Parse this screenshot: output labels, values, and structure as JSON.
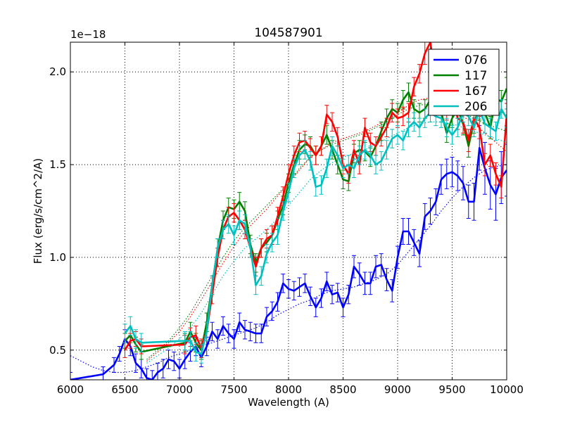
{
  "chart_data": {
    "type": "line",
    "title": "104587901",
    "xlabel": "Wavelength (A)",
    "ylabel": "Flux (erg/s/cm^2/A)",
    "y_offset_label": "1e−18",
    "xlim": [
      6000,
      10000
    ],
    "ylim": [
      0.34,
      2.16
    ],
    "x_ticks": [
      6000,
      6500,
      7000,
      7500,
      8000,
      8500,
      9000,
      9500,
      10000
    ],
    "y_ticks": [
      0.5,
      1.0,
      1.5,
      2.0
    ],
    "x_tick_labels": [
      "6000",
      "6500",
      "7000",
      "7500",
      "8000",
      "8500",
      "9000",
      "9500",
      "10000"
    ],
    "y_tick_labels": [
      "0.5",
      "1.0",
      "1.5",
      "2.0"
    ],
    "grid": true,
    "grid_style": "dotted",
    "legend_position": "top-right",
    "series": [
      {
        "name": "076",
        "color": "#0000ff",
        "x": [
          6000,
          6300,
          6400,
          6450,
          6500,
          6550,
          6600,
          6650,
          6700,
          6750,
          6800,
          6850,
          6900,
          6950,
          7000,
          7050,
          7100,
          7150,
          7200,
          7250,
          7300,
          7350,
          7400,
          7450,
          7500,
          7550,
          7600,
          7650,
          7700,
          7750,
          7800,
          7850,
          7900,
          7950,
          8000,
          8050,
          8100,
          8150,
          8200,
          8250,
          8300,
          8350,
          8400,
          8450,
          8500,
          8550,
          8600,
          8650,
          8700,
          8750,
          8800,
          8850,
          8900,
          8950,
          9000,
          9050,
          9100,
          9150,
          9200,
          9250,
          9300,
          9350,
          9400,
          9450,
          9500,
          9550,
          9600,
          9650,
          9700,
          9750,
          9800,
          9850,
          9900,
          9950,
          10000
        ],
        "y": [
          0.34,
          0.37,
          0.42,
          0.48,
          0.56,
          0.52,
          0.43,
          0.4,
          0.35,
          0.34,
          0.38,
          0.4,
          0.45,
          0.44,
          0.4,
          0.45,
          0.49,
          0.52,
          0.46,
          0.52,
          0.6,
          0.56,
          0.63,
          0.59,
          0.56,
          0.65,
          0.61,
          0.6,
          0.59,
          0.59,
          0.68,
          0.71,
          0.76,
          0.86,
          0.83,
          0.82,
          0.84,
          0.86,
          0.79,
          0.73,
          0.78,
          0.87,
          0.8,
          0.81,
          0.73,
          0.8,
          0.95,
          0.91,
          0.86,
          0.86,
          0.95,
          0.96,
          0.88,
          0.82,
          1.0,
          1.14,
          1.14,
          1.08,
          1.02,
          1.22,
          1.25,
          1.3,
          1.42,
          1.45,
          1.46,
          1.44,
          1.4,
          1.3,
          1.3,
          1.59,
          1.48,
          1.39,
          1.34,
          1.43,
          1.47
        ],
        "err": [
          0.04,
          0.04,
          0.04,
          0.04,
          0.05,
          0.05,
          0.05,
          0.05,
          0.05,
          0.05,
          0.05,
          0.05,
          0.05,
          0.05,
          0.05,
          0.05,
          0.05,
          0.05,
          0.05,
          0.05,
          0.05,
          0.05,
          0.05,
          0.05,
          0.05,
          0.05,
          0.05,
          0.05,
          0.05,
          0.05,
          0.05,
          0.05,
          0.05,
          0.05,
          0.05,
          0.05,
          0.05,
          0.05,
          0.05,
          0.05,
          0.05,
          0.05,
          0.05,
          0.05,
          0.05,
          0.05,
          0.06,
          0.06,
          0.06,
          0.06,
          0.06,
          0.06,
          0.06,
          0.06,
          0.06,
          0.07,
          0.07,
          0.07,
          0.07,
          0.07,
          0.07,
          0.07,
          0.08,
          0.08,
          0.08,
          0.08,
          0.09,
          0.09,
          0.1,
          0.12,
          0.14,
          0.13,
          0.14,
          0.14,
          0.14
        ],
        "fit_x": [
          6000,
          6100,
          6200,
          6300,
          6400,
          6500,
          6600,
          6700,
          6800,
          6900,
          7000,
          7100,
          7200,
          7300,
          7400,
          7500,
          7600,
          7700,
          7800,
          7900,
          8000,
          8100,
          8200,
          8300,
          8400,
          8500,
          8600,
          8700,
          8800,
          8900,
          9000,
          9100,
          9200,
          9300,
          9400,
          9500,
          9600,
          9700,
          9800,
          9900,
          10000
        ],
        "fit_y": [
          0.47,
          0.44,
          0.41,
          0.39,
          0.38,
          0.38,
          0.39,
          0.41,
          0.43,
          0.46,
          0.48,
          0.5,
          0.52,
          0.54,
          0.56,
          0.58,
          0.6,
          0.62,
          0.65,
          0.69,
          0.72,
          0.75,
          0.77,
          0.8,
          0.82,
          0.83,
          0.84,
          0.86,
          0.88,
          0.91,
          0.96,
          1.03,
          1.1,
          1.17,
          1.25,
          1.32,
          1.38,
          1.43,
          1.47,
          1.49,
          1.5
        ]
      },
      {
        "name": "117",
        "color": "#008000",
        "x": [
          6500,
          6550,
          6600,
          6650,
          7050,
          7100,
          7150,
          7200,
          7250,
          7300,
          7350,
          7400,
          7450,
          7500,
          7550,
          7600,
          7650,
          7700,
          7750,
          7800,
          7850,
          7900,
          7950,
          8000,
          8050,
          8100,
          8150,
          8200,
          8250,
          8300,
          8350,
          8400,
          8450,
          8500,
          8550,
          8600,
          8650,
          8700,
          8750,
          8800,
          8850,
          8900,
          8950,
          9000,
          9050,
          9100,
          9150,
          9200,
          9250,
          9300,
          9350,
          9400,
          9450,
          9500,
          9550,
          9600,
          9650,
          9700,
          9750,
          9800,
          9850,
          9900,
          9950,
          10000
        ],
        "y": [
          0.55,
          0.58,
          0.53,
          0.49,
          0.54,
          0.6,
          0.54,
          0.5,
          0.65,
          0.85,
          1.05,
          1.2,
          1.27,
          1.26,
          1.3,
          1.25,
          1.07,
          0.97,
          1.05,
          1.08,
          1.12,
          1.2,
          1.28,
          1.4,
          1.5,
          1.58,
          1.61,
          1.6,
          1.55,
          1.6,
          1.66,
          1.58,
          1.5,
          1.42,
          1.41,
          1.56,
          1.58,
          1.57,
          1.54,
          1.6,
          1.68,
          1.75,
          1.8,
          1.78,
          1.85,
          1.89,
          1.8,
          1.78,
          1.8,
          1.85,
          1.84,
          1.78,
          1.67,
          1.75,
          1.8,
          1.72,
          1.6,
          1.73,
          1.8,
          1.78,
          1.7,
          1.86,
          1.84,
          1.91
        ],
        "err": [
          0.04,
          0.04,
          0.04,
          0.04,
          0.05,
          0.05,
          0.05,
          0.05,
          0.05,
          0.05,
          0.05,
          0.05,
          0.05,
          0.05,
          0.05,
          0.05,
          0.05,
          0.05,
          0.05,
          0.05,
          0.05,
          0.05,
          0.05,
          0.05,
          0.05,
          0.05,
          0.05,
          0.05,
          0.05,
          0.05,
          0.05,
          0.05,
          0.05,
          0.05,
          0.05,
          0.05,
          0.05,
          0.05,
          0.05,
          0.05,
          0.05,
          0.05,
          0.05,
          0.05,
          0.05,
          0.05,
          0.05,
          0.05,
          0.05,
          0.05,
          0.05,
          0.05,
          0.05,
          0.05,
          0.05,
          0.06,
          0.06,
          0.06,
          0.06,
          0.06,
          0.06,
          0.06,
          0.06,
          0.06
        ],
        "fit_x": [
          6700,
          6800,
          6900,
          7000,
          7100,
          7200,
          7300,
          7400,
          7500,
          7600,
          7700,
          7800,
          7900,
          8000,
          8100,
          8200,
          8300,
          8400,
          8500,
          8600,
          8700,
          8800,
          8900,
          9000,
          9100,
          9200,
          9300,
          9400,
          9500,
          9600,
          9700,
          9800,
          9900,
          10000
        ],
        "fit_y": [
          0.45,
          0.5,
          0.55,
          0.62,
          0.7,
          0.8,
          0.9,
          1.0,
          1.09,
          1.16,
          1.22,
          1.28,
          1.34,
          1.4,
          1.48,
          1.54,
          1.58,
          1.61,
          1.63,
          1.65,
          1.67,
          1.7,
          1.73,
          1.77,
          1.8,
          1.82,
          1.83,
          1.82,
          1.8,
          1.78,
          1.75,
          1.72,
          1.7,
          1.68
        ]
      },
      {
        "name": "167",
        "color": "#ff0000",
        "x": [
          6500,
          6550,
          6600,
          6650,
          7050,
          7100,
          7150,
          7200,
          7250,
          7300,
          7350,
          7400,
          7450,
          7500,
          7550,
          7600,
          7650,
          7700,
          7750,
          7800,
          7850,
          7900,
          7950,
          8000,
          8050,
          8100,
          8150,
          8200,
          8250,
          8300,
          8350,
          8400,
          8450,
          8500,
          8550,
          8600,
          8650,
          8700,
          8750,
          8800,
          8850,
          8900,
          8950,
          9000,
          9050,
          9100,
          9150,
          9200,
          9250,
          9300,
          9350,
          9400,
          9450,
          9500,
          9550,
          9600,
          9650,
          9700,
          9750,
          9800,
          9850,
          9900,
          9950,
          10000
        ],
        "y": [
          0.5,
          0.55,
          0.56,
          0.52,
          0.53,
          0.57,
          0.58,
          0.51,
          0.6,
          0.8,
          1.0,
          1.15,
          1.22,
          1.24,
          1.2,
          1.15,
          1.05,
          0.95,
          1.05,
          1.1,
          1.12,
          1.22,
          1.33,
          1.45,
          1.55,
          1.62,
          1.63,
          1.59,
          1.55,
          1.6,
          1.77,
          1.73,
          1.65,
          1.5,
          1.45,
          1.58,
          1.5,
          1.7,
          1.62,
          1.6,
          1.65,
          1.7,
          1.78,
          1.75,
          1.76,
          1.78,
          1.92,
          1.99,
          2.1,
          2.16,
          1.95,
          1.9,
          1.8,
          1.88,
          1.75,
          1.73,
          1.63,
          1.75,
          1.7,
          1.5,
          1.55,
          1.45,
          1.38,
          1.77
        ],
        "err": [
          0.04,
          0.04,
          0.04,
          0.04,
          0.05,
          0.05,
          0.05,
          0.05,
          0.05,
          0.05,
          0.05,
          0.05,
          0.05,
          0.05,
          0.05,
          0.05,
          0.05,
          0.05,
          0.05,
          0.05,
          0.05,
          0.05,
          0.05,
          0.05,
          0.05,
          0.05,
          0.05,
          0.05,
          0.05,
          0.05,
          0.05,
          0.05,
          0.05,
          0.05,
          0.05,
          0.05,
          0.05,
          0.05,
          0.05,
          0.05,
          0.05,
          0.05,
          0.05,
          0.05,
          0.05,
          0.05,
          0.05,
          0.05,
          0.06,
          0.06,
          0.06,
          0.06,
          0.06,
          0.06,
          0.06,
          0.06,
          0.06,
          0.06,
          0.06,
          0.06,
          0.06,
          0.06,
          0.06,
          0.06
        ],
        "fit_x": [
          6700,
          6800,
          6900,
          7000,
          7100,
          7200,
          7300,
          7400,
          7500,
          7600,
          7700,
          7800,
          7900,
          8000,
          8100,
          8200,
          8300,
          8400,
          8500,
          8600,
          8700,
          8800,
          8900,
          9000,
          9100,
          9200,
          9300,
          9400,
          9500,
          9600,
          9700,
          9800,
          9900,
          10000
        ],
        "fit_y": [
          0.44,
          0.49,
          0.54,
          0.6,
          0.68,
          0.77,
          0.87,
          0.97,
          1.06,
          1.14,
          1.2,
          1.26,
          1.33,
          1.4,
          1.47,
          1.54,
          1.58,
          1.62,
          1.64,
          1.66,
          1.68,
          1.71,
          1.74,
          1.78,
          1.82,
          1.85,
          1.86,
          1.84,
          1.8,
          1.76,
          1.72,
          1.67,
          1.62,
          1.57
        ]
      },
      {
        "name": "206",
        "color": "#00bfbf",
        "x": [
          6500,
          6550,
          6600,
          6650,
          7050,
          7100,
          7150,
          7200,
          7250,
          7300,
          7350,
          7400,
          7450,
          7500,
          7550,
          7600,
          7650,
          7700,
          7750,
          7800,
          7850,
          7900,
          7950,
          8000,
          8050,
          8100,
          8150,
          8200,
          8250,
          8300,
          8350,
          8400,
          8450,
          8500,
          8550,
          8600,
          8650,
          8700,
          8750,
          8800,
          8850,
          8900,
          8950,
          9000,
          9050,
          9100,
          9150,
          9200,
          9250,
          9300,
          9350,
          9400,
          9450,
          9500,
          9550,
          9600,
          9650,
          9700,
          9750,
          9800,
          9850,
          9900,
          9950,
          10000
        ],
        "y": [
          0.59,
          0.63,
          0.56,
          0.54,
          0.55,
          0.55,
          0.49,
          0.48,
          0.6,
          0.85,
          1.05,
          1.15,
          1.18,
          1.12,
          1.2,
          1.18,
          1.05,
          0.85,
          0.9,
          1.02,
          1.08,
          1.12,
          1.25,
          1.35,
          1.48,
          1.55,
          1.58,
          1.52,
          1.38,
          1.39,
          1.48,
          1.6,
          1.55,
          1.48,
          1.5,
          1.48,
          1.55,
          1.58,
          1.55,
          1.5,
          1.52,
          1.58,
          1.64,
          1.66,
          1.63,
          1.7,
          1.73,
          1.7,
          1.75,
          1.78,
          1.76,
          1.75,
          1.7,
          1.66,
          1.7,
          1.78,
          1.76,
          1.7,
          1.8,
          1.72,
          1.7,
          1.68,
          1.8,
          1.75
        ],
        "err": [
          0.05,
          0.05,
          0.05,
          0.05,
          0.05,
          0.05,
          0.05,
          0.05,
          0.05,
          0.05,
          0.05,
          0.05,
          0.05,
          0.05,
          0.05,
          0.05,
          0.05,
          0.05,
          0.05,
          0.05,
          0.05,
          0.05,
          0.05,
          0.05,
          0.05,
          0.05,
          0.05,
          0.05,
          0.05,
          0.05,
          0.05,
          0.05,
          0.05,
          0.05,
          0.05,
          0.05,
          0.05,
          0.05,
          0.05,
          0.05,
          0.05,
          0.05,
          0.05,
          0.05,
          0.05,
          0.05,
          0.05,
          0.05,
          0.05,
          0.05,
          0.05,
          0.05,
          0.05,
          0.05,
          0.05,
          0.05,
          0.05,
          0.05,
          0.05,
          0.05,
          0.05,
          0.05,
          0.05,
          0.05
        ],
        "fit_x": [
          6700,
          6800,
          6900,
          7000,
          7100,
          7200,
          7300,
          7400,
          7500,
          7600,
          7700,
          7800,
          7900,
          8000,
          8100,
          8200,
          8300,
          8400,
          8500,
          8600,
          8700,
          8800,
          8900,
          9000,
          9100,
          9200,
          9300,
          9400,
          9500,
          9600,
          9700,
          9800,
          9900,
          10000
        ],
        "fit_y": [
          0.43,
          0.47,
          0.51,
          0.56,
          0.62,
          0.7,
          0.8,
          0.9,
          0.98,
          1.05,
          1.1,
          1.15,
          1.21,
          1.28,
          1.35,
          1.42,
          1.47,
          1.51,
          1.54,
          1.56,
          1.58,
          1.61,
          1.64,
          1.67,
          1.7,
          1.72,
          1.73,
          1.73,
          1.72,
          1.7,
          1.68,
          1.66,
          1.64,
          1.62
        ]
      }
    ]
  }
}
